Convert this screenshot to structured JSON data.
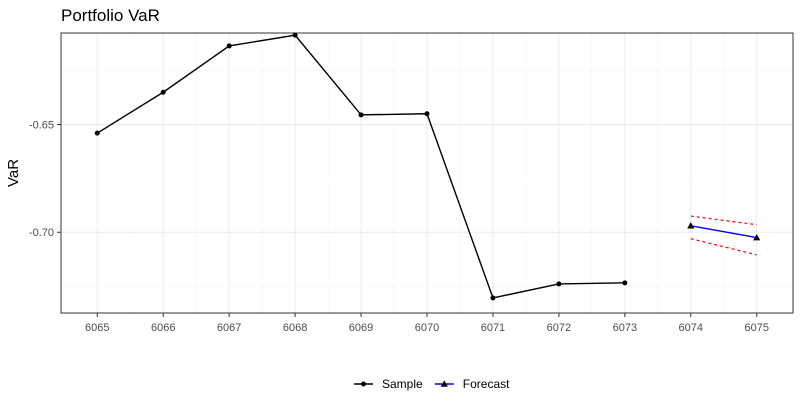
{
  "chart_data": {
    "type": "line",
    "title": "Portfolio VaR",
    "ylabel": "VaR",
    "xlabel": "",
    "x_ticks": [
      6065,
      6066,
      6067,
      6068,
      6069,
      6070,
      6071,
      6072,
      6073,
      6074,
      6075
    ],
    "y_ticks": [
      -0.65,
      -0.7
    ],
    "y_tick_labels": [
      "-0.65",
      "-0.70"
    ],
    "xlim": [
      6064.45,
      6075.55
    ],
    "ylim": [
      -0.7375,
      -0.6075
    ],
    "grid": true,
    "legend_position": "bottom",
    "series": [
      {
        "name": "Sample",
        "color": "#000000",
        "marker": "circle",
        "x": [
          6065,
          6066,
          6067,
          6068,
          6069,
          6070,
          6071,
          6072,
          6073
        ],
        "y": [
          -0.654,
          -0.635,
          -0.6135,
          -0.6085,
          -0.6455,
          -0.645,
          -0.7305,
          -0.724,
          -0.7235
        ]
      },
      {
        "name": "Forecast",
        "color": "#0000ff",
        "marker": "triangle",
        "x": [
          6074,
          6075
        ],
        "y": [
          -0.697,
          -0.7025
        ]
      }
    ],
    "intervals": [
      {
        "color": "#ff0000",
        "style": "dashed",
        "x": [
          6074,
          6075
        ],
        "upper": [
          -0.6925,
          -0.6965
        ],
        "lower": [
          -0.703,
          -0.7105
        ]
      }
    ]
  }
}
